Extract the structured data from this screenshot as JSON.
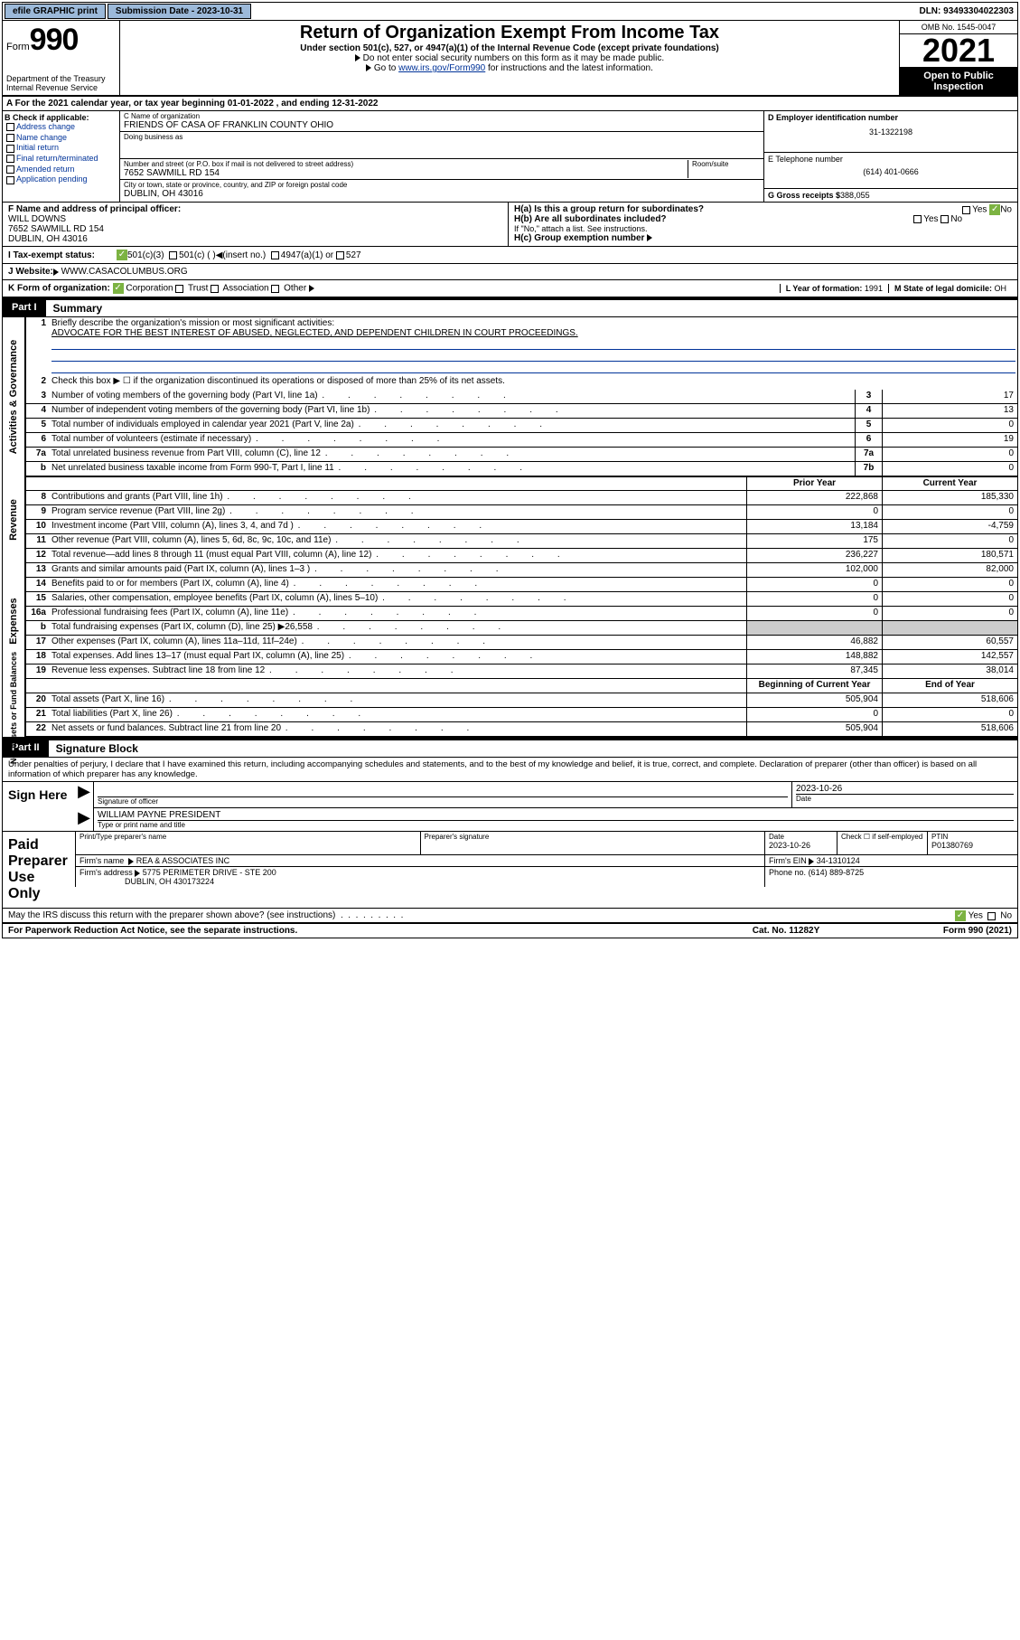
{
  "topbar": {
    "efile": "efile GRAPHIC print",
    "sub_label": "Submission Date - 2023-10-31",
    "dln": "DLN: 93493304022303"
  },
  "header": {
    "form_prefix": "Form",
    "form_num": "990",
    "dept": "Department of the Treasury\nInternal Revenue Service",
    "title": "Return of Organization Exempt From Income Tax",
    "sub": "Under section 501(c), 527, or 4947(a)(1) of the Internal Revenue Code (except private foundations)",
    "note1": "Do not enter social security numbers on this form as it may be made public.",
    "note2_prefix": "Go to ",
    "note2_link": "www.irs.gov/Form990",
    "note2_suffix": " for instructions and the latest information.",
    "omb": "OMB No. 1545-0047",
    "year": "2021",
    "inspect": "Open to Public Inspection"
  },
  "row_a": "A For the 2021 calendar year, or tax year beginning 01-01-2022     , and ending 12-31-2022",
  "col_b": {
    "hdr": "B Check if applicable:",
    "items": [
      "Address change",
      "Name change",
      "Initial return",
      "Final return/terminated",
      "Amended return",
      "Application pending"
    ]
  },
  "col_c": {
    "name_lbl": "C Name of organization",
    "name": "FRIENDS OF CASA OF FRANKLIN COUNTY OHIO",
    "dba_lbl": "Doing business as",
    "dba": "",
    "addr_lbl": "Number and street (or P.O. box if mail is not delivered to street address)",
    "suite_lbl": "Room/suite",
    "addr": "7652 SAWMILL RD 154",
    "city_lbl": "City or town, state or province, country, and ZIP or foreign postal code",
    "city": "DUBLIN, OH  43016"
  },
  "col_d": {
    "ein_lbl": "D Employer identification number",
    "ein": "31-1322198",
    "tel_lbl": "E Telephone number",
    "tel": "(614) 401-0666",
    "gross_lbl": "G Gross receipts $",
    "gross": "388,055"
  },
  "row_f": {
    "lbl": "F  Name and address of principal officer:",
    "name": "WILL DOWNS",
    "addr1": "7652 SAWMILL RD 154",
    "addr2": "DUBLIN, OH  43016"
  },
  "row_h": {
    "ha": "H(a)  Is this a group return for subordinates?",
    "hb": "H(b)  Are all subordinates included?",
    "hb_note": "If \"No,\" attach a list. See instructions.",
    "hc": "H(c)  Group exemption number"
  },
  "row_i": {
    "lbl": "I     Tax-exempt status:",
    "o1": "501(c)(3)",
    "o2": "501(c) (   )",
    "o2b": "(insert no.)",
    "o3": "4947(a)(1) or",
    "o4": "527"
  },
  "row_j": {
    "lbl": "J    Website:",
    "val": "WWW.CASACOLUMBUS.ORG"
  },
  "row_k": {
    "lbl": "K Form of organization:",
    "o1": "Corporation",
    "o2": "Trust",
    "o3": "Association",
    "o4": "Other",
    "l_lbl": "L Year of formation:",
    "l_val": "1991",
    "m_lbl": "M State of legal domicile:",
    "m_val": "OH"
  },
  "part1": {
    "title": "Summary",
    "mission_lbl": "Briefly describe the organization's mission or most significant activities:",
    "mission": "ADVOCATE FOR THE BEST INTEREST OF ABUSED, NEGLECTED, AND DEPENDENT CHILDREN IN COURT PROCEEDINGS.",
    "line2": "Check this box ▶ ☐  if the organization discontinued its operations or disposed of more than 25% of its net assets.",
    "sides": {
      "gov": "Activities & Governance",
      "rev": "Revenue",
      "exp": "Expenses",
      "net": "Net Assets or Fund Balances"
    },
    "cols": {
      "prior": "Prior Year",
      "current": "Current Year",
      "begin": "Beginning of Current Year",
      "end": "End of Year"
    },
    "gov_rows": [
      {
        "n": "3",
        "txt": "Number of voting members of the governing body (Part VI, line 1a)",
        "box": "3",
        "val": "17"
      },
      {
        "n": "4",
        "txt": "Number of independent voting members of the governing body (Part VI, line 1b)",
        "box": "4",
        "val": "13"
      },
      {
        "n": "5",
        "txt": "Total number of individuals employed in calendar year 2021 (Part V, line 2a)",
        "box": "5",
        "val": "0"
      },
      {
        "n": "6",
        "txt": "Total number of volunteers (estimate if necessary)",
        "box": "6",
        "val": "19"
      },
      {
        "n": "7a",
        "txt": "Total unrelated business revenue from Part VIII, column (C), line 12",
        "box": "7a",
        "val": "0"
      },
      {
        "n": "b",
        "txt": "Net unrelated business taxable income from Form 990-T, Part I, line 11",
        "box": "7b",
        "val": "0"
      }
    ],
    "rev_rows": [
      {
        "n": "8",
        "txt": "Contributions and grants (Part VIII, line 1h)",
        "p": "222,868",
        "c": "185,330"
      },
      {
        "n": "9",
        "txt": "Program service revenue (Part VIII, line 2g)",
        "p": "0",
        "c": "0"
      },
      {
        "n": "10",
        "txt": "Investment income (Part VIII, column (A), lines 3, 4, and 7d )",
        "p": "13,184",
        "c": "-4,759"
      },
      {
        "n": "11",
        "txt": "Other revenue (Part VIII, column (A), lines 5, 6d, 8c, 9c, 10c, and 11e)",
        "p": "175",
        "c": "0"
      },
      {
        "n": "12",
        "txt": "Total revenue—add lines 8 through 11 (must equal Part VIII, column (A), line 12)",
        "p": "236,227",
        "c": "180,571"
      }
    ],
    "exp_rows": [
      {
        "n": "13",
        "txt": "Grants and similar amounts paid (Part IX, column (A), lines 1–3 )",
        "p": "102,000",
        "c": "82,000"
      },
      {
        "n": "14",
        "txt": "Benefits paid to or for members (Part IX, column (A), line 4)",
        "p": "0",
        "c": "0"
      },
      {
        "n": "15",
        "txt": "Salaries, other compensation, employee benefits (Part IX, column (A), lines 5–10)",
        "p": "0",
        "c": "0"
      },
      {
        "n": "16a",
        "txt": "Professional fundraising fees (Part IX, column (A), line 11e)",
        "p": "0",
        "c": "0"
      },
      {
        "n": "b",
        "txt": "Total fundraising expenses (Part IX, column (D), line 25) ▶26,558",
        "p": "",
        "c": "",
        "shade": true
      },
      {
        "n": "17",
        "txt": "Other expenses (Part IX, column (A), lines 11a–11d, 11f–24e)",
        "p": "46,882",
        "c": "60,557"
      },
      {
        "n": "18",
        "txt": "Total expenses. Add lines 13–17 (must equal Part IX, column (A), line 25)",
        "p": "148,882",
        "c": "142,557"
      },
      {
        "n": "19",
        "txt": "Revenue less expenses. Subtract line 18 from line 12",
        "p": "87,345",
        "c": "38,014"
      }
    ],
    "net_rows": [
      {
        "n": "20",
        "txt": "Total assets (Part X, line 16)",
        "p": "505,904",
        "c": "518,606"
      },
      {
        "n": "21",
        "txt": "Total liabilities (Part X, line 26)",
        "p": "0",
        "c": "0"
      },
      {
        "n": "22",
        "txt": "Net assets or fund balances. Subtract line 21 from line 20",
        "p": "505,904",
        "c": "518,606"
      }
    ]
  },
  "part2": {
    "title": "Signature Block",
    "intro": "Under penalties of perjury, I declare that I have examined this return, including accompanying schedules and statements, and to the best of my knowledge and belief, it is true, correct, and complete. Declaration of preparer (other than officer) is based on all information of which preparer has any knowledge.",
    "sign_here": "Sign Here",
    "sig_officer": "Signature of officer",
    "sig_date": "2023-10-26",
    "date_lbl": "Date",
    "officer_name": "WILLIAM PAYNE  PRESIDENT",
    "officer_lbl": "Type or print name and title",
    "paid": "Paid Preparer Use Only",
    "prep_name_lbl": "Print/Type preparer's name",
    "prep_sig_lbl": "Preparer's signature",
    "prep_date_lbl": "Date",
    "prep_date": "2023-10-26",
    "self_emp": "Check ☐  if self-employed",
    "ptin_lbl": "PTIN",
    "ptin": "P01380769",
    "firm_name_lbl": "Firm's name",
    "firm_name": "REA & ASSOCIATES INC",
    "firm_ein_lbl": "Firm's EIN",
    "firm_ein": "34-1310124",
    "firm_addr_lbl": "Firm's address",
    "firm_addr1": "5775 PERIMETER DRIVE - STE 200",
    "firm_addr2": "DUBLIN, OH  430173224",
    "phone_lbl": "Phone no.",
    "phone": "(614) 889-8725",
    "discuss": "May the IRS discuss this return with the preparer shown above? (see instructions)"
  },
  "footer": {
    "left": "For Paperwork Reduction Act Notice, see the separate instructions.",
    "mid": "Cat. No. 11282Y",
    "right": "Form 990 (2021)"
  }
}
